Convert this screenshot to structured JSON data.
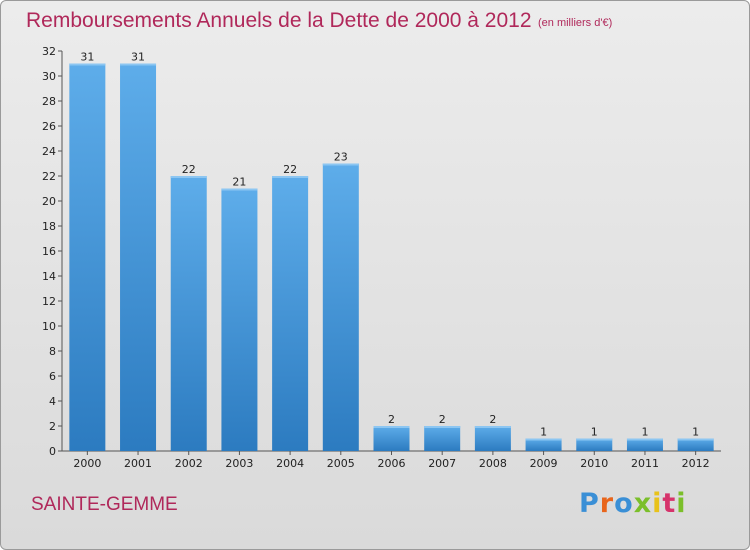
{
  "title": "Remboursements Annuels de la Dette de 2000 à 2012",
  "subtitle": "(en milliers d'€)",
  "commune": "SAINTE-GEMME",
  "logo": {
    "text": "Proxiti",
    "letters": [
      "P",
      "r",
      "o",
      "x",
      "i",
      "t",
      "i"
    ],
    "colors": [
      "#3a8fd6",
      "#e8651b",
      "#3a8fd6",
      "#7bbf2a",
      "#e8c21b",
      "#d6336b",
      "#7bbf2a"
    ]
  },
  "colors": {
    "bar": "#3f93d8",
    "bar_dark": "#2c7bc0",
    "title": "#b0285a"
  },
  "chart_data": {
    "type": "bar",
    "categories": [
      "2000",
      "2001",
      "2002",
      "2003",
      "2004",
      "2005",
      "2006",
      "2007",
      "2008",
      "2009",
      "2010",
      "2011",
      "2012"
    ],
    "values": [
      31,
      31,
      22,
      21,
      22,
      23,
      2,
      2,
      2,
      1,
      1,
      1,
      1
    ],
    "title": "Remboursements Annuels de la Dette de 2000 à 2012",
    "subtitle": "(en milliers d'€)",
    "ylim": [
      0,
      32
    ],
    "yticks": [
      0,
      2,
      4,
      6,
      8,
      10,
      12,
      14,
      16,
      18,
      20,
      22,
      24,
      26,
      28,
      30,
      32
    ],
    "grid": false,
    "data_labels": true
  }
}
